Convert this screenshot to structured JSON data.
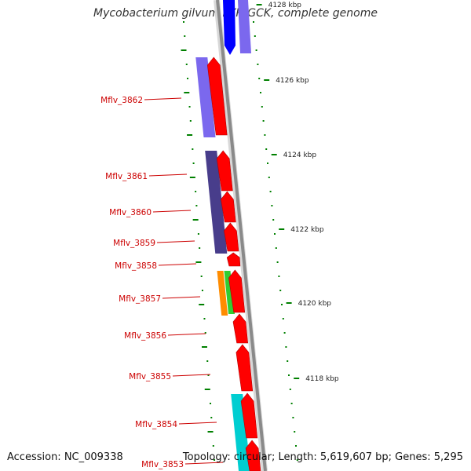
{
  "title": "Mycobacterium gilvum PYR-GCK, complete genome",
  "footer": {
    "accession": "Accession: NC_009338",
    "summary": "Topology: circular; Length: 5,619,607 bp; Genes: 5,295"
  },
  "scale_labels": [
    "4128 kbp",
    "4126 kbp",
    "4124 kbp",
    "4122 kbp",
    "4120 kbp",
    "4118 kbp"
  ],
  "gene_labels": [
    "Mflv_3862",
    "Mflv_3861",
    "Mflv_3860",
    "Mflv_3859",
    "Mflv_3858",
    "Mflv_3857",
    "Mflv_3856",
    "Mflv_3855",
    "Mflv_3854",
    "Mflv_3853"
  ],
  "colors": {
    "backbone": "#8a8a8a",
    "gene_forward": "#ff0000",
    "cog_blue": "#0000ff",
    "cog_lavender": "#7b68ee",
    "cog_slate": "#483d8b",
    "cog_orange": "#ff8c00",
    "cog_green": "#32cd32",
    "cog_cyan": "#00ced1",
    "tick_green": "#008000",
    "label_red": "#cc0000"
  }
}
